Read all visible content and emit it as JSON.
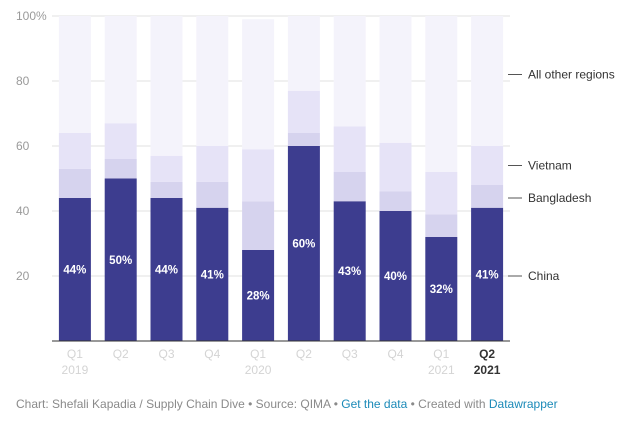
{
  "chart_data": {
    "type": "bar",
    "stacked": true,
    "categories": [
      [
        "Q1",
        "2019"
      ],
      [
        "Q2",
        ""
      ],
      [
        "Q3",
        ""
      ],
      [
        "Q4",
        ""
      ],
      [
        "Q1",
        "2020"
      ],
      [
        "Q2",
        ""
      ],
      [
        "Q3",
        ""
      ],
      [
        "Q4",
        ""
      ],
      [
        "Q1",
        "2021"
      ],
      [
        "Q2",
        "2021"
      ]
    ],
    "highlight_index": 9,
    "series": [
      {
        "name": "China",
        "values": [
          44,
          50,
          44,
          41,
          28,
          60,
          43,
          40,
          32,
          41
        ],
        "color": "#3d3d8f"
      },
      {
        "name": "Bangladesh",
        "values": [
          9,
          6,
          5,
          8,
          15,
          4,
          9,
          6,
          7,
          7
        ],
        "color": "#d6d3ee"
      },
      {
        "name": "Vietnam",
        "values": [
          11,
          11,
          8,
          11,
          16,
          13,
          14,
          15,
          13,
          12
        ],
        "color": "#e6e3f7"
      },
      {
        "name": "All other regions",
        "values": [
          36,
          33,
          43,
          40,
          40,
          23,
          34,
          39,
          48,
          40
        ],
        "color": "#f4f3fb"
      }
    ],
    "data_labels": [
      "44%",
      "50%",
      "44%",
      "41%",
      "28%",
      "60%",
      "43%",
      "40%",
      "32%",
      "41%"
    ],
    "legend_labels": [
      {
        "name": "All other regions",
        "at_value": 82
      },
      {
        "name": "Vietnam",
        "at_value": 54
      },
      {
        "name": "Bangladesh",
        "at_value": 44
      },
      {
        "name": "China",
        "at_value": 20
      }
    ],
    "yticks": [
      {
        "value": 100,
        "label": "100%"
      },
      {
        "value": 80,
        "label": "80"
      },
      {
        "value": 60,
        "label": "60"
      },
      {
        "value": 40,
        "label": "40"
      },
      {
        "value": 20,
        "label": "20"
      }
    ],
    "ylim": [
      0,
      100
    ],
    "grid": true,
    "legend": "right"
  },
  "footer": {
    "prefix": "Chart: Shefali Kapadia / Supply Chain Dive • Source: QIMA • ",
    "link1": "Get the data",
    "middle": " • Created with ",
    "link2": "Datawrapper"
  }
}
